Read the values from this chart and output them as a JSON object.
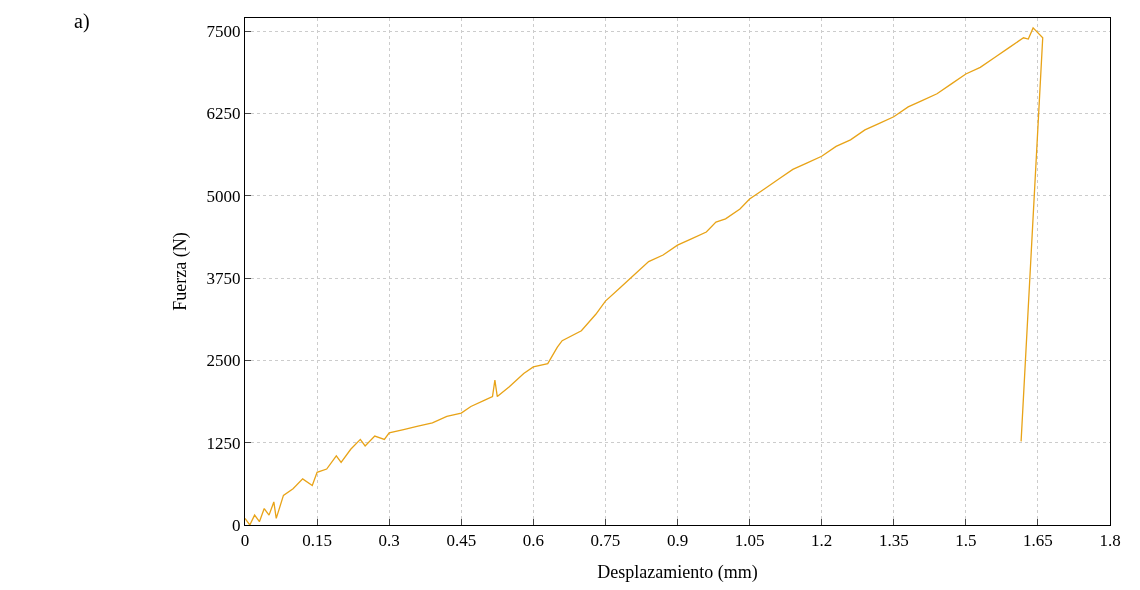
{
  "chart_data": {
    "type": "line",
    "xlabel": "Desplazamiento (mm)",
    "ylabel": "Fuerza (N)",
    "annotations": [
      "a)"
    ],
    "series": [
      {
        "color": "#e8a317",
        "x": [
          0,
          0.01,
          0.02,
          0.03,
          0.04,
          0.05,
          0.06,
          0.065,
          0.08,
          0.1,
          0.12,
          0.14,
          0.15,
          0.17,
          0.19,
          0.2,
          0.22,
          0.24,
          0.25,
          0.27,
          0.29,
          0.3,
          0.33,
          0.36,
          0.39,
          0.42,
          0.45,
          0.47,
          0.5,
          0.515,
          0.52,
          0.525,
          0.55,
          0.58,
          0.6,
          0.63,
          0.65,
          0.66,
          0.7,
          0.73,
          0.75,
          0.78,
          0.81,
          0.84,
          0.87,
          0.9,
          0.93,
          0.96,
          0.98,
          1.0,
          1.03,
          1.05,
          1.08,
          1.11,
          1.14,
          1.17,
          1.2,
          1.23,
          1.26,
          1.29,
          1.32,
          1.35,
          1.38,
          1.41,
          1.44,
          1.47,
          1.5,
          1.53,
          1.56,
          1.59,
          1.62,
          1.63,
          1.64,
          1.66,
          1.615
        ],
        "values": [
          100,
          0,
          150,
          50,
          250,
          150,
          350,
          100,
          450,
          550,
          700,
          600,
          800,
          850,
          1050,
          950,
          1150,
          1300,
          1200,
          1350,
          1300,
          1400,
          1450,
          1500,
          1550,
          1650,
          1700,
          1800,
          1900,
          1950,
          2200,
          1950,
          2100,
          2300,
          2400,
          2450,
          2700,
          2800,
          2950,
          3200,
          3400,
          3600,
          3800,
          4000,
          4100,
          4250,
          4350,
          4450,
          4600,
          4650,
          4800,
          4950,
          5100,
          5250,
          5400,
          5500,
          5600,
          5750,
          5850,
          6000,
          6100,
          6200,
          6350,
          6450,
          6550,
          6700,
          6850,
          6950,
          7100,
          7250,
          7400,
          7380,
          7550,
          7400,
          1270
        ]
      }
    ],
    "xlim": [
      0,
      1.8
    ],
    "xticks": [
      0,
      0.15,
      0.3,
      0.45,
      0.6,
      0.75,
      0.9,
      1.05,
      1.2,
      1.35,
      1.5,
      1.65,
      1.8
    ],
    "ylim": [
      0,
      7700
    ],
    "yticks": [
      0,
      1250,
      2500,
      3750,
      5000,
      6250,
      7500
    ],
    "grid": true,
    "marker": "none",
    "line_style": "solid"
  }
}
